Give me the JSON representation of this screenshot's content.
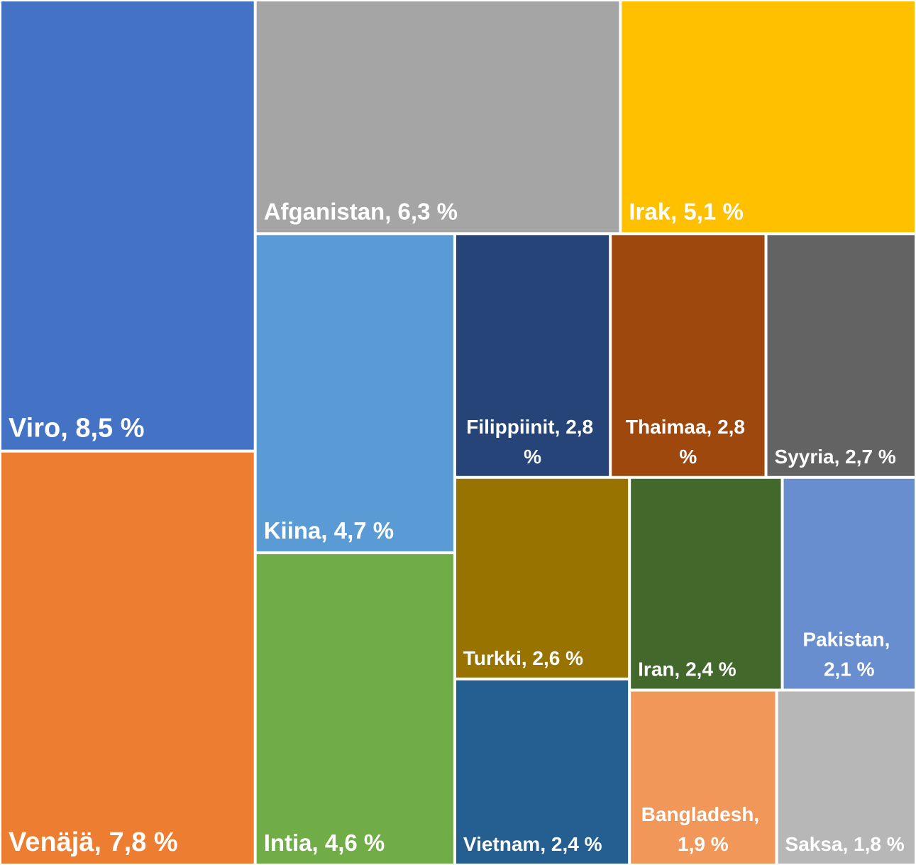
{
  "chart_data": {
    "type": "treemap",
    "values": [
      8.5,
      7.8,
      6.3,
      5.1,
      4.7,
      4.6,
      2.8,
      2.8,
      2.7,
      2.6,
      2.4,
      2.4,
      2.1,
      1.9,
      1.8
    ],
    "value_labels": [
      "Viro, 8,5 %",
      "Venäjä, 7,8 %",
      "Afganistan, 6,3 %",
      "Irak, 5,1 %",
      "Kiina, 4,7 %",
      "Intia, 4,6 %",
      "Filippiinit, 2,8 %",
      "Thaimaa, 2,8 %",
      "Syyria, 2,7 %",
      "Turkki, 2,6 %",
      "Vietnam, 2,4 %",
      "Iran, 2,4 %",
      "Pakistan, 2,1 %",
      "Bangladesh, 1,9 %",
      "Saksa, 1,8 %"
    ],
    "colors": [
      "#4472c4",
      "#ed7d31",
      "#a5a5a5",
      "#ffc000",
      "#5b9bd5",
      "#70ad47",
      "#264478",
      "#9e480e",
      "#636363",
      "#997300",
      "#255e91",
      "#43682b",
      "#698ed0",
      "#f1975a",
      "#b7b7b7"
    ]
  }
}
